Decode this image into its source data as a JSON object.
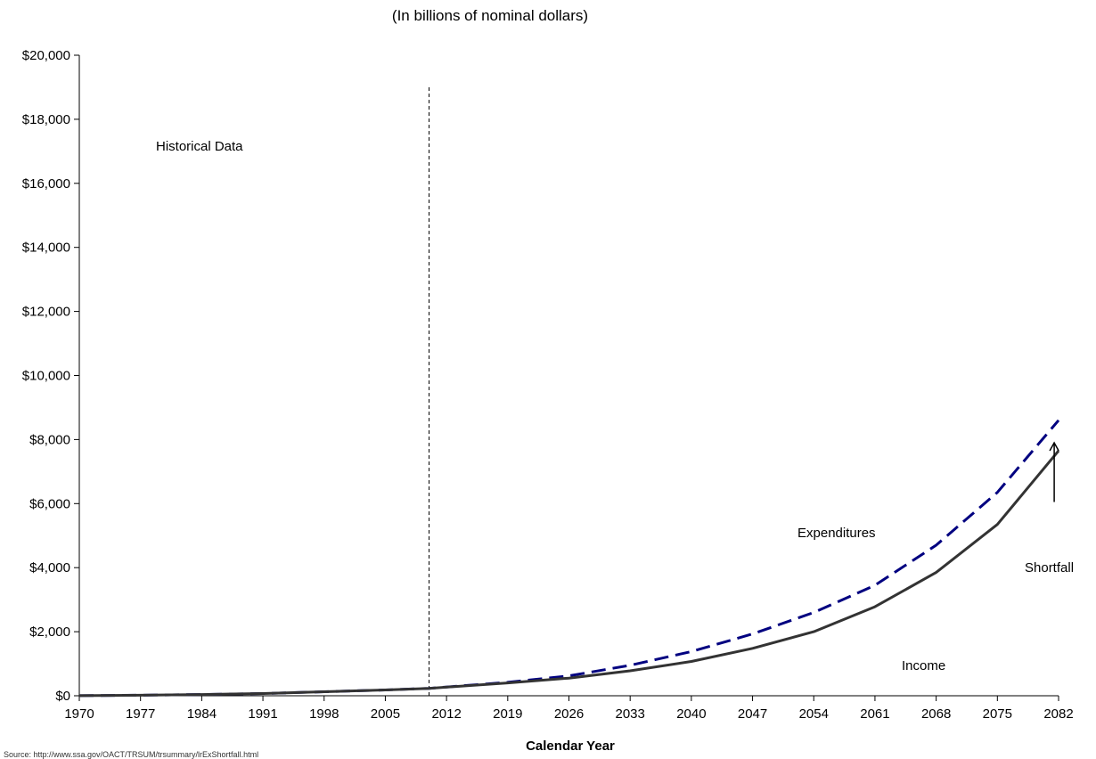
{
  "chart_data": {
    "type": "line",
    "subtitle": "(In billions of nominal dollars)",
    "xlabel": "Calendar Year",
    "ylabel": "",
    "x_ticks": [
      1970,
      1977,
      1984,
      1991,
      1998,
      2005,
      2012,
      2019,
      2026,
      2033,
      2040,
      2047,
      2054,
      2061,
      2068,
      2075,
      2082
    ],
    "y_ticks": [
      0,
      2000,
      4000,
      6000,
      8000,
      10000,
      12000,
      14000,
      16000,
      18000,
      20000
    ],
    "y_tick_labels": [
      "$0",
      "$2,000",
      "$4,000",
      "$6,000",
      "$8,000",
      "$10,000",
      "$12,000",
      "$14,000",
      "$16,000",
      "$18,000",
      "$20,000"
    ],
    "xlim": [
      1970,
      2082
    ],
    "ylim": [
      0,
      20000
    ],
    "historical_divider_year": 2010,
    "series": [
      {
        "key": "expenditures",
        "color": "#000080",
        "style": "dashed",
        "x": [
          1970,
          1977,
          1984,
          1991,
          1998,
          2005,
          2010,
          2019,
          2026,
          2033,
          2040,
          2047,
          2054,
          2061,
          2068,
          2075,
          2082
        ],
        "values": [
          3,
          18,
          40,
          70,
          125,
          180,
          230,
          420,
          620,
          950,
          1380,
          1930,
          2600,
          3450,
          4700,
          6350,
          8600
        ]
      },
      {
        "key": "income",
        "color": "#333333",
        "style": "solid",
        "x": [
          1970,
          1977,
          1984,
          1991,
          1998,
          2005,
          2010,
          2019,
          2026,
          2033,
          2040,
          2047,
          2054,
          2061,
          2068,
          2075,
          2082
        ],
        "values": [
          3,
          18,
          40,
          70,
          125,
          180,
          230,
          400,
          550,
          780,
          1070,
          1480,
          2000,
          2780,
          3850,
          5350,
          7650
        ]
      }
    ],
    "annotations": {
      "historical": "Historical Data",
      "expenditures": "Expenditures",
      "income": "Income",
      "shortfall": "Shortfall"
    }
  },
  "footer": {
    "source": "Source: http://www.ssa.gov/OACT/TRSUM/trsummary/lrExShortfall.html"
  }
}
